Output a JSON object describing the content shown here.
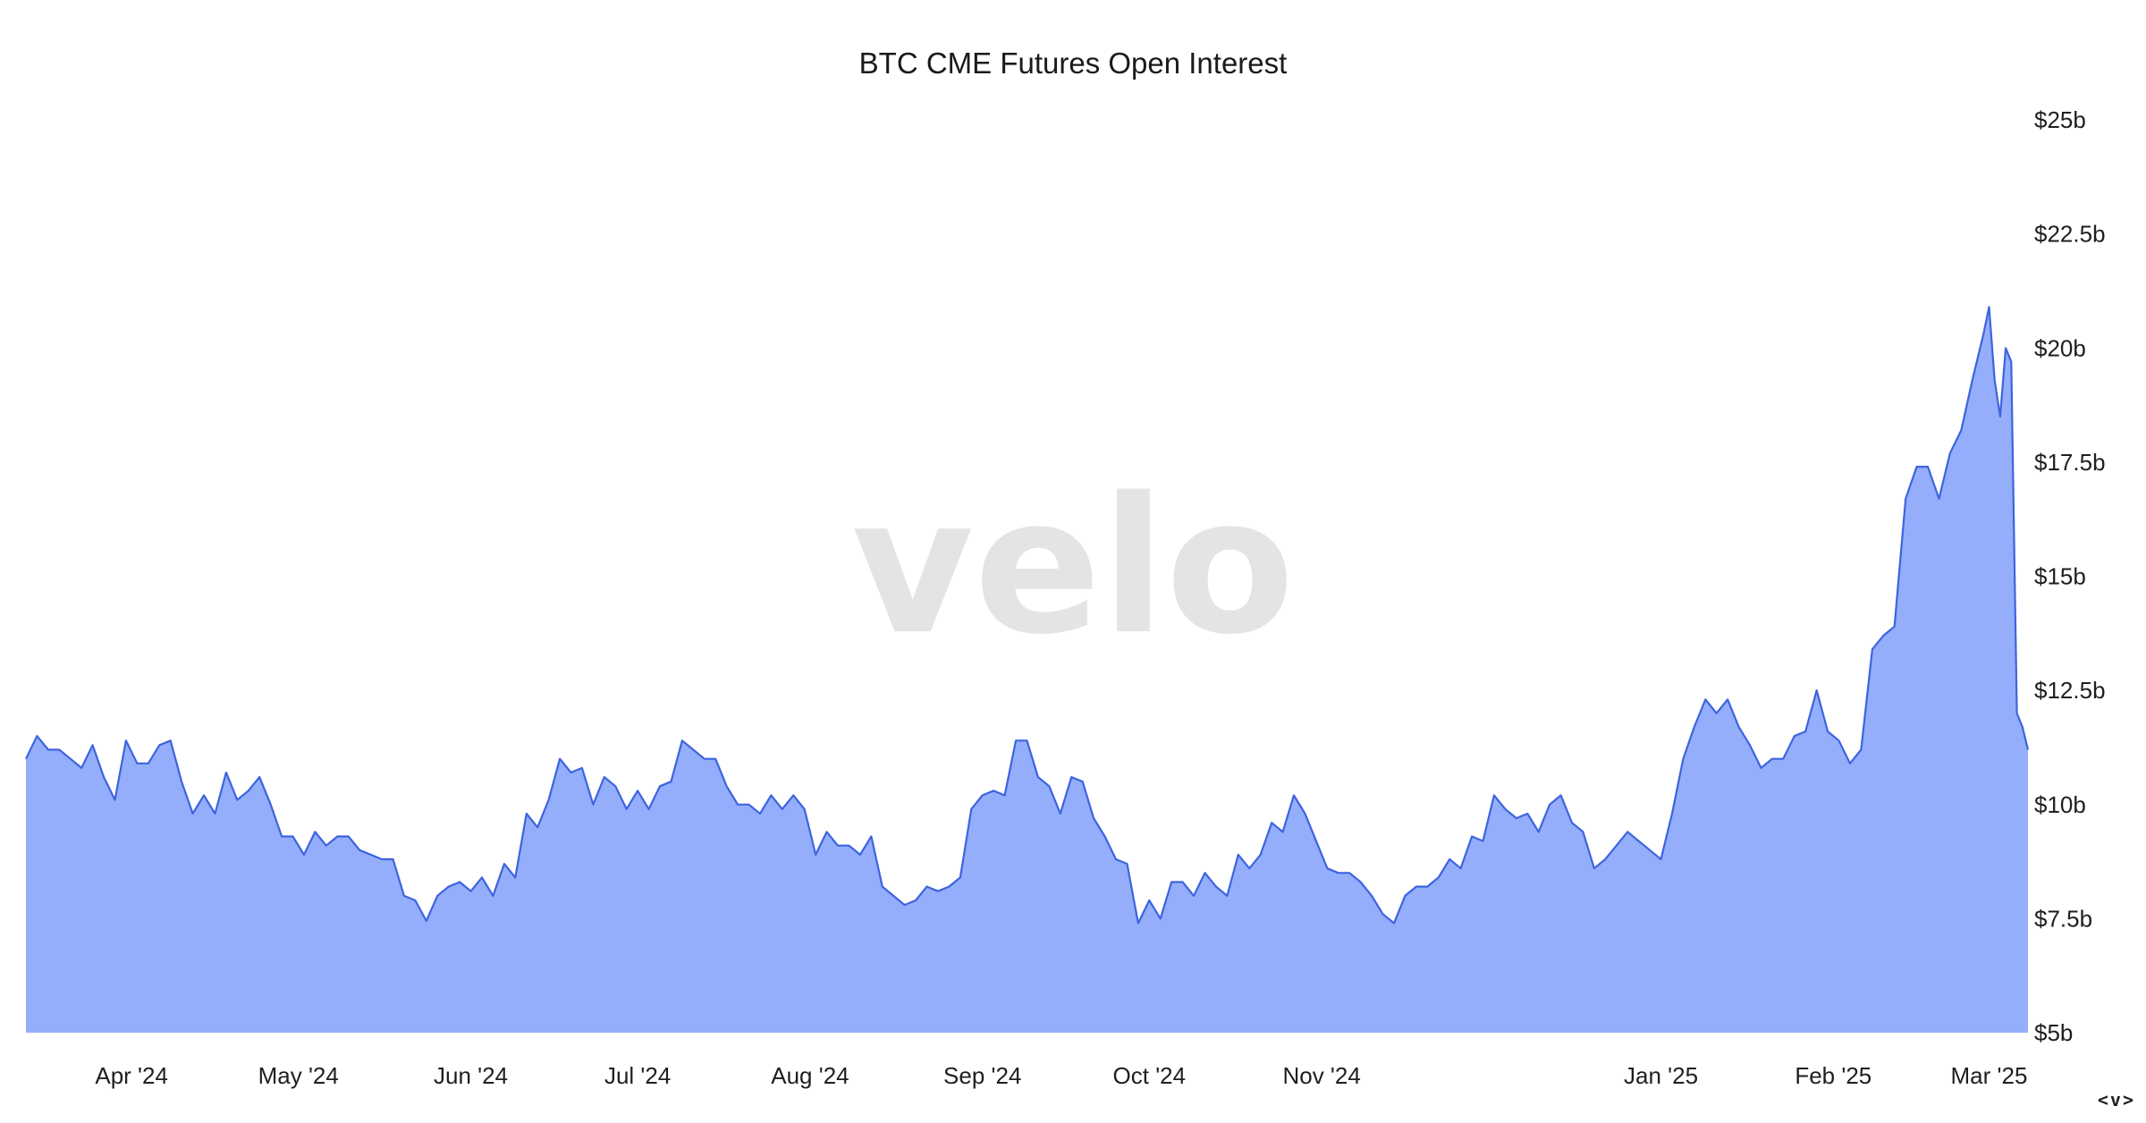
{
  "chart_data": {
    "type": "area",
    "title": "BTC CME Futures Open Interest",
    "watermark": "velo",
    "y_axis": {
      "position": "right",
      "ylim": [
        5,
        25
      ],
      "ticks": [
        5,
        7.5,
        10,
        12.5,
        15,
        17.5,
        20,
        22.5,
        25
      ],
      "tick_labels": [
        "$5b",
        "$7.5b",
        "$10b",
        "$12.5b",
        "$15b",
        "$17.5b",
        "$20b",
        "$22.5b",
        "$25b"
      ]
    },
    "x_axis": {
      "xlim": [
        "2024-03-13",
        "2025-03-08"
      ],
      "ticks": [
        "2024-04-01",
        "2024-05-01",
        "2024-06-01",
        "2024-07-01",
        "2024-08-01",
        "2024-09-01",
        "2024-10-01",
        "2024-11-01",
        "2025-01-01",
        "2025-02-01",
        "2025-03-01"
      ],
      "tick_labels": [
        "Apr '24",
        "May '24",
        "Jun '24",
        "Jul '24",
        "Aug '24",
        "Sep '24",
        "Oct '24",
        "Nov '24",
        "Jan '25",
        "Feb '25",
        "Mar '25"
      ]
    },
    "grid": false,
    "legend": "none",
    "colors": {
      "fill": "#94aefc",
      "line": "#3d64de"
    },
    "series": [
      {
        "points": [
          [
            "2024-03-13",
            11.0
          ],
          [
            "2024-03-15",
            11.5
          ],
          [
            "2024-03-17",
            11.2
          ],
          [
            "2024-03-19",
            11.2
          ],
          [
            "2024-03-21",
            11.0
          ],
          [
            "2024-03-23",
            10.8
          ],
          [
            "2024-03-25",
            11.3
          ],
          [
            "2024-03-27",
            10.6
          ],
          [
            "2024-03-29",
            10.1
          ],
          [
            "2024-03-31",
            11.4
          ],
          [
            "2024-04-02",
            10.9
          ],
          [
            "2024-04-04",
            10.9
          ],
          [
            "2024-04-06",
            11.3
          ],
          [
            "2024-04-08",
            11.4
          ],
          [
            "2024-04-10",
            10.5
          ],
          [
            "2024-04-12",
            9.8
          ],
          [
            "2024-04-14",
            10.2
          ],
          [
            "2024-04-16",
            9.8
          ],
          [
            "2024-04-18",
            10.7
          ],
          [
            "2024-04-20",
            10.1
          ],
          [
            "2024-04-22",
            10.3
          ],
          [
            "2024-04-24",
            10.6
          ],
          [
            "2024-04-26",
            10.0
          ],
          [
            "2024-04-28",
            9.3
          ],
          [
            "2024-04-30",
            9.3
          ],
          [
            "2024-05-02",
            8.9
          ],
          [
            "2024-05-04",
            9.4
          ],
          [
            "2024-05-06",
            9.1
          ],
          [
            "2024-05-08",
            9.3
          ],
          [
            "2024-05-10",
            9.3
          ],
          [
            "2024-05-12",
            9.0
          ],
          [
            "2024-05-14",
            8.9
          ],
          [
            "2024-05-16",
            8.8
          ],
          [
            "2024-05-18",
            8.8
          ],
          [
            "2024-05-20",
            8.0
          ],
          [
            "2024-05-22",
            7.9
          ],
          [
            "2024-05-24",
            7.45
          ],
          [
            "2024-05-26",
            8.0
          ],
          [
            "2024-05-28",
            8.2
          ],
          [
            "2024-05-30",
            8.3
          ],
          [
            "2024-06-01",
            8.1
          ],
          [
            "2024-06-03",
            8.4
          ],
          [
            "2024-06-05",
            8.0
          ],
          [
            "2024-06-07",
            8.7
          ],
          [
            "2024-06-09",
            8.4
          ],
          [
            "2024-06-11",
            9.8
          ],
          [
            "2024-06-13",
            9.5
          ],
          [
            "2024-06-15",
            10.1
          ],
          [
            "2024-06-17",
            11.0
          ],
          [
            "2024-06-19",
            10.7
          ],
          [
            "2024-06-21",
            10.8
          ],
          [
            "2024-06-23",
            10.0
          ],
          [
            "2024-06-25",
            10.6
          ],
          [
            "2024-06-27",
            10.4
          ],
          [
            "2024-06-29",
            9.9
          ],
          [
            "2024-07-01",
            10.3
          ],
          [
            "2024-07-03",
            9.9
          ],
          [
            "2024-07-05",
            10.4
          ],
          [
            "2024-07-07",
            10.5
          ],
          [
            "2024-07-09",
            11.4
          ],
          [
            "2024-07-11",
            11.2
          ],
          [
            "2024-07-13",
            11.0
          ],
          [
            "2024-07-15",
            11.0
          ],
          [
            "2024-07-17",
            10.4
          ],
          [
            "2024-07-19",
            10.0
          ],
          [
            "2024-07-21",
            10.0
          ],
          [
            "2024-07-23",
            9.8
          ],
          [
            "2024-07-25",
            10.2
          ],
          [
            "2024-07-27",
            9.9
          ],
          [
            "2024-07-29",
            10.2
          ],
          [
            "2024-07-31",
            9.9
          ],
          [
            "2024-08-02",
            8.9
          ],
          [
            "2024-08-04",
            9.4
          ],
          [
            "2024-08-06",
            9.1
          ],
          [
            "2024-08-08",
            9.1
          ],
          [
            "2024-08-10",
            8.9
          ],
          [
            "2024-08-12",
            9.3
          ],
          [
            "2024-08-14",
            8.2
          ],
          [
            "2024-08-16",
            8.0
          ],
          [
            "2024-08-18",
            7.8
          ],
          [
            "2024-08-20",
            7.9
          ],
          [
            "2024-08-22",
            8.2
          ],
          [
            "2024-08-24",
            8.1
          ],
          [
            "2024-08-26",
            8.2
          ],
          [
            "2024-08-28",
            8.4
          ],
          [
            "2024-08-30",
            9.9
          ],
          [
            "2024-09-01",
            10.2
          ],
          [
            "2024-09-03",
            10.3
          ],
          [
            "2024-09-05",
            10.2
          ],
          [
            "2024-09-07",
            11.4
          ],
          [
            "2024-09-09",
            11.4
          ],
          [
            "2024-09-11",
            10.6
          ],
          [
            "2024-09-13",
            10.4
          ],
          [
            "2024-09-15",
            9.8
          ],
          [
            "2024-09-17",
            10.6
          ],
          [
            "2024-09-19",
            10.5
          ],
          [
            "2024-09-21",
            9.7
          ],
          [
            "2024-09-23",
            9.3
          ],
          [
            "2024-09-25",
            8.8
          ],
          [
            "2024-09-27",
            8.7
          ],
          [
            "2024-09-29",
            7.4
          ],
          [
            "2024-10-01",
            7.9
          ],
          [
            "2024-10-03",
            7.5
          ],
          [
            "2024-10-05",
            8.3
          ],
          [
            "2024-10-07",
            8.3
          ],
          [
            "2024-10-09",
            8.0
          ],
          [
            "2024-10-11",
            8.5
          ],
          [
            "2024-10-13",
            8.2
          ],
          [
            "2024-10-15",
            8.0
          ],
          [
            "2024-10-17",
            8.9
          ],
          [
            "2024-10-19",
            8.6
          ],
          [
            "2024-10-21",
            8.9
          ],
          [
            "2024-10-23",
            9.6
          ],
          [
            "2024-10-25",
            9.4
          ],
          [
            "2024-10-27",
            10.2
          ],
          [
            "2024-10-29",
            9.8
          ],
          [
            "2024-10-31",
            9.2
          ],
          [
            "2024-11-02",
            8.6
          ],
          [
            "2024-11-04",
            8.5
          ],
          [
            "2024-11-06",
            8.5
          ],
          [
            "2024-11-08",
            8.3
          ],
          [
            "2024-11-10",
            8.0
          ],
          [
            "2024-11-12",
            7.6
          ],
          [
            "2024-11-14",
            7.4
          ],
          [
            "2024-11-16",
            8.0
          ],
          [
            "2024-11-18",
            8.2
          ],
          [
            "2024-11-20",
            8.2
          ],
          [
            "2024-11-22",
            8.4
          ],
          [
            "2024-11-24",
            8.8
          ],
          [
            "2024-11-26",
            8.6
          ],
          [
            "2024-11-28",
            9.3
          ],
          [
            "2024-11-30",
            9.2
          ],
          [
            "2024-12-02",
            10.2
          ],
          [
            "2024-12-04",
            9.9
          ],
          [
            "2024-12-06",
            9.7
          ],
          [
            "2024-12-08",
            9.8
          ],
          [
            "2024-12-10",
            9.4
          ],
          [
            "2024-12-12",
            10.0
          ],
          [
            "2024-12-14",
            10.2
          ],
          [
            "2024-12-16",
            9.6
          ],
          [
            "2024-12-18",
            9.4
          ],
          [
            "2024-12-20",
            8.6
          ],
          [
            "2024-12-22",
            8.8
          ],
          [
            "2024-12-24",
            9.1
          ],
          [
            "2024-12-26",
            9.4
          ],
          [
            "2024-12-28",
            9.2
          ],
          [
            "2024-12-30",
            9.0
          ],
          [
            "2025-01-01",
            8.8
          ],
          [
            "2025-01-03",
            9.8
          ],
          [
            "2025-01-05",
            11.0
          ],
          [
            "2025-01-07",
            11.7
          ],
          [
            "2025-01-09",
            12.3
          ],
          [
            "2025-01-11",
            12.0
          ],
          [
            "2025-01-13",
            12.3
          ],
          [
            "2025-01-15",
            11.7
          ],
          [
            "2025-01-17",
            11.3
          ],
          [
            "2025-01-19",
            10.8
          ],
          [
            "2025-01-21",
            11.0
          ],
          [
            "2025-01-23",
            11.0
          ],
          [
            "2025-01-25",
            11.5
          ],
          [
            "2025-01-27",
            11.6
          ],
          [
            "2025-01-29",
            12.5
          ],
          [
            "2025-01-31",
            11.6
          ],
          [
            "2025-02-02",
            11.4
          ],
          [
            "2025-02-04",
            10.9
          ],
          [
            "2025-02-06",
            11.2
          ],
          [
            "2025-02-08",
            13.4
          ],
          [
            "2025-02-10",
            13.7
          ],
          [
            "2025-02-12",
            13.9
          ],
          [
            "2025-02-14",
            16.7
          ],
          [
            "2025-02-16",
            17.4
          ],
          [
            "2025-02-18",
            17.4
          ],
          [
            "2025-02-20",
            16.7
          ],
          [
            "2025-02-22",
            17.7
          ],
          [
            "2025-02-24",
            18.2
          ],
          [
            "2025-02-26",
            19.3
          ],
          [
            "2025-02-28",
            20.3
          ],
          [
            "2025-03-01",
            20.9
          ],
          [
            "2025-03-02",
            19.3
          ],
          [
            "2025-03-03",
            18.5
          ],
          [
            "2025-03-04",
            20.0
          ],
          [
            "2025-03-05",
            19.7
          ],
          [
            "2025-03-06",
            12.0
          ],
          [
            "2025-03-07",
            11.7
          ],
          [
            "2025-03-08",
            11.2
          ]
        ]
      }
    ]
  },
  "nav": {
    "glyph": "<v>"
  }
}
